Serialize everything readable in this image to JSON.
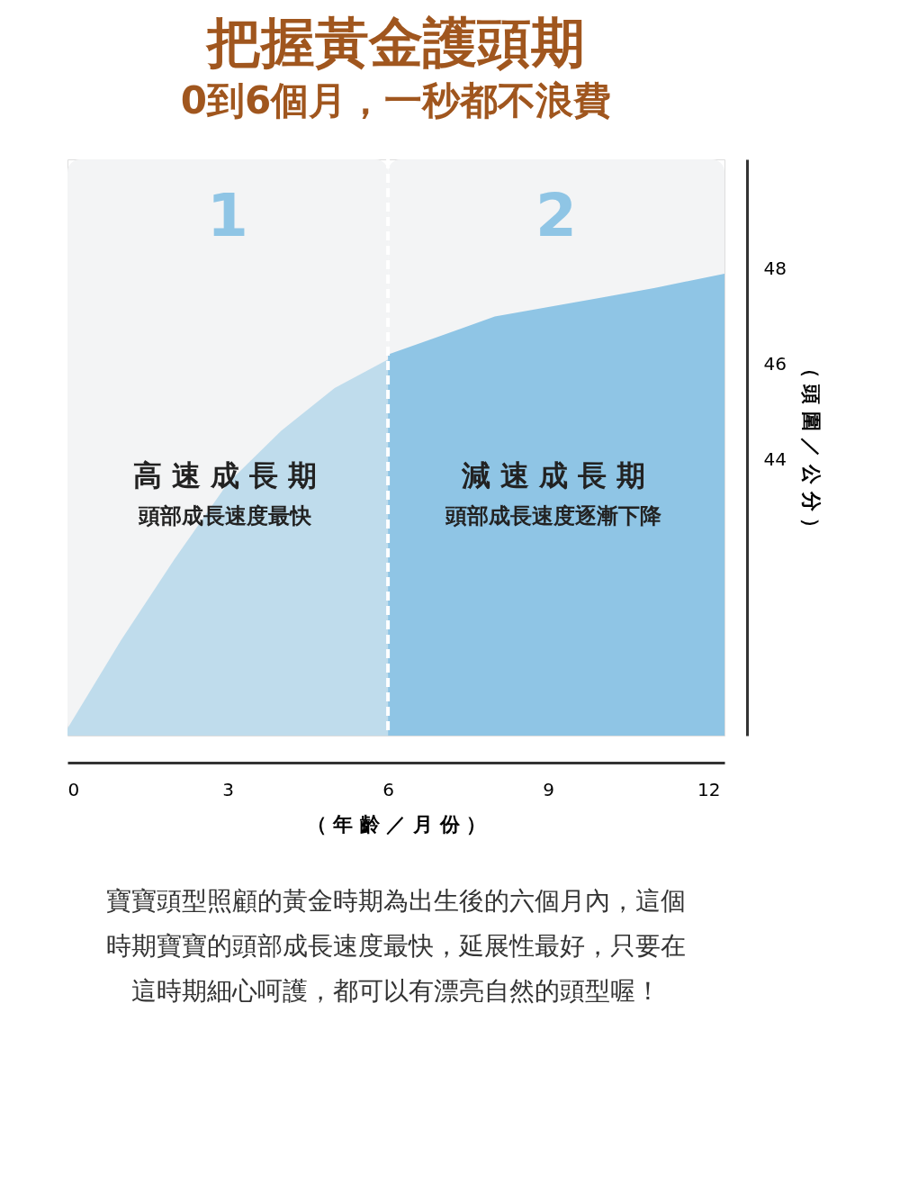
{
  "chart_data": {
    "type": "area",
    "title": "把握黃金護頭期",
    "subtitle": "0到6個月，一秒都不浪費",
    "xlabel": "（ 年 齡 ／ 月 份 ）",
    "ylabel": "（ 頭 圍 ／ 公 分 ）",
    "xlim": [
      0,
      12.3
    ],
    "xticks": [
      0,
      3,
      6,
      9,
      12
    ],
    "ylim": [
      38.2,
      50.3
    ],
    "yticks": [
      44,
      46,
      48
    ],
    "series": [
      {
        "type": "area",
        "color": "#bfdcec",
        "x": [
          0,
          1,
          2,
          3,
          4,
          5,
          6
        ],
        "values": [
          38.35,
          40.2,
          41.9,
          43.5,
          44.6,
          45.5,
          46.1
        ]
      },
      {
        "type": "area",
        "color": "#8fc5e5",
        "x": [
          6,
          7,
          8,
          9,
          10,
          11,
          12.3
        ],
        "values": [
          46.2,
          46.6,
          47.0,
          47.2,
          47.4,
          47.6,
          47.9
        ]
      }
    ],
    "bands": [
      {
        "axis": "x",
        "from": 0,
        "to": 6,
        "label": "1",
        "color": "#f3f4f5"
      },
      {
        "axis": "x",
        "from": 6,
        "to": 12.3,
        "label": "2",
        "color": "#f3f4f5"
      }
    ],
    "ref_lines": [
      {
        "axis": "x",
        "value": 6,
        "label": null,
        "color": "#ffffff",
        "line_style": "dashed"
      }
    ],
    "annotations": [
      "高 速 成 長 期",
      "頭部成長速度最快",
      "減 速 成 長 期",
      "頭部成長速度逐漸下降",
      "寶寶頭型照顧的黃金時期為出生後的六個月內，這個",
      "時期寶寶的頭部成長速度最快，延展性最好，只要在",
      "這時期細心呵護，都可以有漂亮自然的頭型喔！"
    ],
    "grid": false
  }
}
